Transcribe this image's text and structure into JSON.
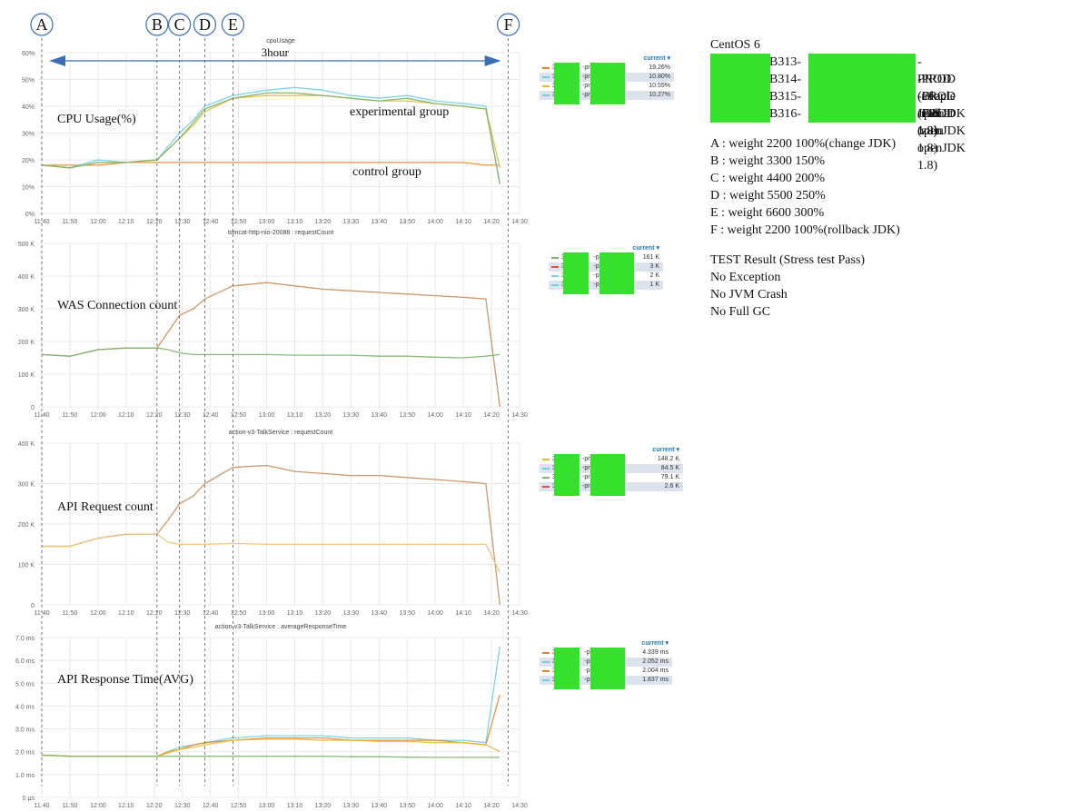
{
  "annotations": {
    "markers": [
      {
        "letter": "A",
        "time": "11:40"
      },
      {
        "letter": "B",
        "time": "12:21"
      },
      {
        "letter": "C",
        "time": "12:29"
      },
      {
        "letter": "D",
        "time": "12:38"
      },
      {
        "letter": "E",
        "time": "12:48"
      },
      {
        "letter": "F",
        "time": "14:26"
      }
    ],
    "duration_label": "3hour"
  },
  "side_panel": {
    "os": "CentOS 6",
    "hosts": [
      {
        "prefix": "B313-",
        "suffix": "-PROD (Oracle JDK 1.8)"
      },
      {
        "prefix": "B314-",
        "suffix": "-PROD (adopt openJDK 1.8)"
      },
      {
        "prefix": "B315-",
        "suffix": "-PROD (redhat openJDK 1.8)"
      },
      {
        "prefix": "B316-",
        "suffix": "-PROD (zulu openJDK 1.8)"
      }
    ],
    "steps": [
      "A : weight 2200 100%(change JDK)",
      "B : weight 3300 150%",
      "C : weight 4400 200%",
      "D : weight 5500 250%",
      "E : weight 6600 300%",
      "F : weight 2200 100%(rollback JDK)"
    ],
    "result_title": "TEST Result (Stress test Pass)",
    "results": [
      "No Exception",
      "No JVM Crash",
      "No Full GC"
    ]
  },
  "legend_header": "current ▾",
  "colors": {
    "orange": "#e5862f",
    "red": "#e24d42",
    "green": "#7eb26d",
    "blue": "#6ed0e0",
    "yellow": "#eab839",
    "brown": "#c98c5a",
    "tan": "#f0c27a",
    "redact": "#36e12d",
    "legend_blue": "#1f78c1",
    "marker_blue": "#3a6fb3",
    "grid": "#e8e8e8"
  },
  "chart_data": [
    {
      "type": "line",
      "title": "cpuUsage",
      "overlay_label": "CPU Usage(%)",
      "ylim": [
        0,
        60
      ],
      "yticks": [
        "0%",
        "10%",
        "20%",
        "30%",
        "40%",
        "50%",
        "60%"
      ],
      "xticks": [
        "11:40",
        "11:50",
        "12:00",
        "12:10",
        "12:20",
        "12:30",
        "12:40",
        "12:50",
        "13:00",
        "13:10",
        "13:20",
        "13:30",
        "13:40",
        "13:50",
        "14:00",
        "14:10",
        "14:20",
        "14:30"
      ],
      "group_labels": [
        "experimental group",
        "control group"
      ],
      "legend": [
        {
          "name": "313",
          "suffix": "-prod",
          "value": "19.26%",
          "color": "orange"
        },
        {
          "name": "316",
          "suffix": "-prod",
          "value": "10.80%",
          "color": "blue"
        },
        {
          "name": "314",
          "suffix": "-prod",
          "value": "10.55%",
          "color": "yellow"
        },
        {
          "name": "315",
          "suffix": "-prod",
          "value": "10.27%",
          "color": "blue"
        }
      ],
      "x_minutes": [
        0,
        10,
        20,
        30,
        41,
        45,
        49,
        54,
        58,
        68,
        80,
        90,
        100,
        110,
        120,
        130,
        140,
        150,
        158,
        163
      ],
      "series": [
        {
          "color": "orange",
          "values": [
            18,
            18,
            18,
            19,
            19,
            19,
            19,
            19,
            19,
            19,
            19,
            19,
            19,
            19,
            19,
            19,
            19,
            19,
            18,
            18
          ]
        },
        {
          "color": "blue",
          "values": [
            18,
            17,
            20,
            19,
            20,
            25,
            30,
            35,
            40,
            44,
            46,
            47,
            46,
            44,
            43,
            44,
            42,
            41,
            40,
            11
          ]
        },
        {
          "color": "yellow",
          "values": [
            18,
            17,
            19,
            19,
            20,
            24,
            28,
            33,
            38,
            43,
            44,
            44,
            44,
            43,
            42,
            42,
            41,
            40,
            39,
            17
          ]
        },
        {
          "color": "green",
          "values": [
            18,
            17,
            19,
            19,
            20,
            24,
            28,
            34,
            39,
            43,
            45,
            45,
            44,
            43,
            42,
            43,
            41,
            40,
            39,
            11
          ]
        }
      ]
    },
    {
      "type": "line",
      "title": "tomcat-http-nio-20088 : requestCount",
      "overlay_label": "WAS Connection count",
      "ylim": [
        0,
        500
      ],
      "yticks": [
        "0",
        "100 K",
        "200 K",
        "300 K",
        "400 K",
        "500 K"
      ],
      "xticks": [
        "11:40",
        "11:50",
        "12:00",
        "12:10",
        "12:20",
        "12:30",
        "12:40",
        "12:50",
        "13:00",
        "13:10",
        "13:20",
        "13:30",
        "13:40",
        "13:50",
        "14:00",
        "14:10",
        "14:20",
        "14:30"
      ],
      "legend": [
        {
          "name": "313-",
          "suffix": "-prod",
          "value": "161 K",
          "color": "green"
        },
        {
          "name": "314-",
          "suffix": "-prod",
          "value": "3 K",
          "color": "red"
        },
        {
          "name": "315-",
          "suffix": "-prod",
          "value": "2 K",
          "color": "blue"
        },
        {
          "name": "316-",
          "suffix": "-prod",
          "value": "1 K",
          "color": "blue"
        }
      ],
      "x_minutes": [
        0,
        10,
        20,
        30,
        41,
        45,
        49,
        54,
        58,
        68,
        80,
        90,
        100,
        110,
        120,
        130,
        140,
        150,
        158,
        163
      ],
      "series": [
        {
          "color": "brown",
          "values": [
            160,
            155,
            175,
            180,
            180,
            230,
            280,
            300,
            330,
            370,
            380,
            370,
            360,
            355,
            350,
            345,
            340,
            335,
            330,
            0
          ]
        },
        {
          "color": "green",
          "values": [
            160,
            155,
            175,
            180,
            180,
            175,
            165,
            160,
            160,
            160,
            160,
            158,
            158,
            158,
            155,
            155,
            152,
            150,
            155,
            160
          ]
        }
      ]
    },
    {
      "type": "line",
      "title": "action-v3-TalkService : requestCount",
      "overlay_label": "API Request count",
      "ylim": [
        0,
        400
      ],
      "yticks": [
        "0",
        "100 K",
        "200 K",
        "300 K",
        "400 K"
      ],
      "xticks": [
        "11:40",
        "11:50",
        "12:00",
        "12:10",
        "12:20",
        "12:30",
        "12:40",
        "12:50",
        "13:00",
        "13:10",
        "13:20",
        "13:30",
        "13:40",
        "13:50",
        "14:00",
        "14:10",
        "14:20",
        "14:30"
      ],
      "legend": [
        {
          "name": "313",
          "suffix": "-prod",
          "value": "148.2 K",
          "color": "yellow"
        },
        {
          "name": "315",
          "suffix": "-prod",
          "value": "84.5 K",
          "color": "blue"
        },
        {
          "name": "316",
          "suffix": "-prod",
          "value": "79.1 K",
          "color": "green"
        },
        {
          "name": "314",
          "suffix": "-prod",
          "value": "2.6 K",
          "color": "red"
        }
      ],
      "x_minutes": [
        0,
        10,
        20,
        30,
        41,
        45,
        49,
        54,
        58,
        68,
        80,
        90,
        100,
        110,
        120,
        130,
        140,
        150,
        158,
        163
      ],
      "series": [
        {
          "color": "brown",
          "values": [
            145,
            145,
            165,
            175,
            175,
            210,
            250,
            270,
            300,
            340,
            345,
            330,
            325,
            320,
            320,
            315,
            310,
            305,
            300,
            0
          ]
        },
        {
          "color": "tan",
          "values": [
            145,
            145,
            165,
            175,
            175,
            155,
            150,
            150,
            150,
            152,
            150,
            150,
            150,
            150,
            150,
            150,
            150,
            150,
            150,
            80
          ]
        }
      ]
    },
    {
      "type": "line",
      "title": "action-v3-TalkService : averageResponseTime",
      "overlay_label": "API Response Time(AVG)",
      "ylim": [
        0,
        7
      ],
      "yticks": [
        "0 μs",
        "1.0 ms",
        "2.0 ms",
        "3.0 ms",
        "4.0 ms",
        "5.0 ms",
        "6.0 ms",
        "7.0 ms"
      ],
      "xticks": [
        "11:40",
        "11:50",
        "12:00",
        "12:10",
        "12:20",
        "12:30",
        "12:40",
        "12:50",
        "13:00",
        "13:10",
        "13:20",
        "13:30",
        "13:40",
        "13:50",
        "14:00",
        "14:10",
        "14:20",
        "14:30"
      ],
      "legend": [
        {
          "name": "314-",
          "suffix": "-prod",
          "value": "4.339 ms",
          "color": "orange"
        },
        {
          "name": "316-",
          "suffix": "-prod",
          "value": "2.052 ms",
          "color": "blue"
        },
        {
          "name": "315-",
          "suffix": "-prod",
          "value": "2.004 ms",
          "color": "orange"
        },
        {
          "name": "313-",
          "suffix": "-prod",
          "value": "1.837 ms",
          "color": "blue"
        }
      ],
      "x_minutes": [
        0,
        10,
        20,
        30,
        41,
        45,
        49,
        54,
        58,
        68,
        80,
        90,
        100,
        110,
        120,
        130,
        140,
        150,
        158,
        163
      ],
      "series": [
        {
          "color": "blue",
          "values": [
            1.85,
            1.8,
            1.8,
            1.8,
            1.8,
            2.0,
            2.2,
            2.3,
            2.4,
            2.6,
            2.7,
            2.7,
            2.7,
            2.6,
            2.6,
            2.6,
            2.5,
            2.5,
            2.4,
            6.6
          ]
        },
        {
          "color": "orange",
          "values": [
            1.85,
            1.8,
            1.8,
            1.8,
            1.8,
            2.0,
            2.1,
            2.3,
            2.4,
            2.5,
            2.6,
            2.6,
            2.6,
            2.5,
            2.5,
            2.5,
            2.5,
            2.4,
            2.3,
            4.5
          ]
        },
        {
          "color": "yellow",
          "values": [
            1.85,
            1.8,
            1.8,
            1.8,
            1.8,
            1.95,
            2.1,
            2.2,
            2.3,
            2.5,
            2.55,
            2.55,
            2.5,
            2.5,
            2.45,
            2.45,
            2.4,
            2.4,
            2.3,
            2.0
          ]
        },
        {
          "color": "green",
          "values": [
            1.85,
            1.8,
            1.8,
            1.8,
            1.8,
            1.8,
            1.8,
            1.8,
            1.8,
            1.8,
            1.8,
            1.8,
            1.8,
            1.78,
            1.78,
            1.76,
            1.75,
            1.75,
            1.75,
            1.75
          ]
        }
      ]
    }
  ]
}
